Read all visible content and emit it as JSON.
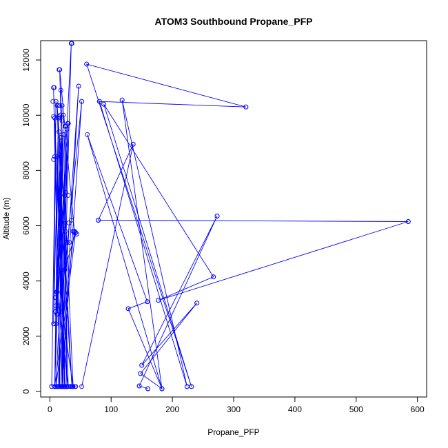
{
  "chart_data": {
    "type": "line",
    "title": "ATOM3 Southbound Propane_PFP",
    "xlabel": "Propane_PFP",
    "ylabel": "Altitude (m)",
    "xlim": [
      -15,
      615
    ],
    "ylim": [
      -200,
      12700
    ],
    "xticks": [
      0,
      100,
      200,
      300,
      400,
      500,
      600
    ],
    "yticks": [
      0,
      2000,
      4000,
      6000,
      8000,
      10000,
      12000
    ],
    "grid": false,
    "legend": "none",
    "colors": {
      "series": "#0000ff",
      "axes": "#000000"
    },
    "series": [
      {
        "x": [
          3,
          10,
          6,
          14,
          8,
          20,
          10,
          18,
          16,
          6,
          14,
          8,
          25,
          12,
          28,
          18,
          30,
          12,
          35,
          20,
          25,
          10,
          22,
          8,
          40,
          16,
          30,
          12,
          22,
          18,
          24,
          15,
          20,
          36,
          22,
          14,
          47,
          20,
          52,
          24,
          42,
          10,
          30,
          20,
          38,
          24,
          28,
          12,
          22,
          18
        ],
        "y": [
          180,
          10500,
          2450,
          9950,
          180,
          10350,
          3400,
          9200,
          180,
          11000,
          3100,
          9900,
          180,
          10350,
          5400,
          180,
          9700,
          2800,
          12600,
          180,
          9600,
          2900,
          9300,
          180,
          5800,
          11650,
          180,
          3600,
          10000,
          5200,
          180,
          9400,
          5800,
          180,
          6200,
          180,
          11050,
          180,
          10500,
          4400,
          5750,
          180,
          9700,
          2900,
          180,
          7100,
          180,
          8500,
          180,
          10900
        ]
      },
      {
        "x": [
          52,
          136,
          79,
          585,
          177,
          267,
          88,
          231,
          60,
          320,
          81,
          224,
          118,
          183,
          61,
          159,
          128,
          183,
          148,
          240,
          150,
          273,
          146,
          160
        ],
        "y": [
          180,
          8950,
          6200,
          6150,
          3300,
          4150,
          10400,
          180,
          11850,
          10300,
          10500,
          180,
          10550,
          100,
          9300,
          3250,
          3000,
          100,
          650,
          3200,
          950,
          6350,
          200,
          100
        ]
      }
    ],
    "points": {
      "x": [
        3,
        5,
        8,
        10,
        6,
        7,
        12,
        14,
        9,
        16,
        18,
        20,
        22,
        24,
        26,
        28,
        30,
        32,
        34,
        36,
        38,
        40,
        42,
        47,
        52,
        60,
        79,
        81,
        88,
        118,
        128,
        136,
        146,
        148,
        150,
        159,
        160,
        177,
        183,
        224,
        231,
        240,
        267,
        273,
        320,
        585,
        13,
        15,
        19,
        23,
        27,
        11,
        17,
        21,
        25,
        29,
        8,
        6,
        10,
        12,
        14,
        16,
        18,
        20,
        22,
        24,
        26,
        28,
        30,
        33,
        35,
        37,
        41,
        44,
        31,
        9
      ],
      "y": [
        180,
        10500,
        180,
        2450,
        9950,
        11000,
        180,
        10350,
        3400,
        180,
        9200,
        180,
        9300,
        180,
        9600,
        180,
        9700,
        5400,
        180,
        12600,
        5800,
        5750,
        180,
        11050,
        10500,
        11850,
        6200,
        10500,
        10400,
        10550,
        3000,
        8950,
        200,
        650,
        950,
        3250,
        100,
        3300,
        100,
        180,
        180,
        3200,
        4150,
        6350,
        10300,
        6150,
        180,
        11650,
        180,
        180,
        180,
        3600,
        10000,
        5200,
        5800,
        9700,
        8500,
        8400,
        3100,
        2800,
        9900,
        10350,
        5200,
        9800,
        6000,
        4400,
        7200,
        9500,
        7100,
        180,
        6200,
        180,
        180,
        5700,
        6100,
        2900
      ]
    }
  }
}
